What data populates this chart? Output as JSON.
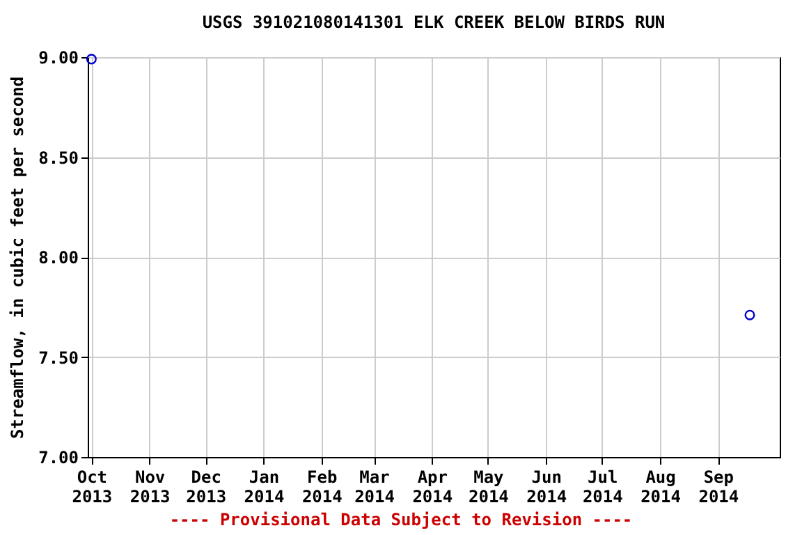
{
  "chart_data": {
    "type": "scatter",
    "title": "USGS 391021080141301 ELK CREEK BELOW BIRDS RUN",
    "ylabel": "Streamflow, in cubic feet per second",
    "x": [
      "2013-10-01",
      "2014-09-18"
    ],
    "series": [
      {
        "color": "#0000cc",
        "values": [
          8.99,
          7.71
        ]
      }
    ],
    "xlim": [
      "2013-09-29",
      "2014-10-04"
    ],
    "xticks": [
      {
        "value": "2013-10-01",
        "label": "Oct 2013"
      },
      {
        "value": "2013-11-01",
        "label": "Nov 2013"
      },
      {
        "value": "2013-12-01",
        "label": "Dec 2013"
      },
      {
        "value": "2014-01-01",
        "label": "Jan 2014"
      },
      {
        "value": "2014-02-01",
        "label": "Feb 2014"
      },
      {
        "value": "2014-03-01",
        "label": "Mar 2014"
      },
      {
        "value": "2014-04-01",
        "label": "Apr 2014"
      },
      {
        "value": "2014-05-01",
        "label": "May 2014"
      },
      {
        "value": "2014-06-01",
        "label": "Jun 2014"
      },
      {
        "value": "2014-07-01",
        "label": "Jul 2014"
      },
      {
        "value": "2014-08-01",
        "label": "Aug 2014"
      },
      {
        "value": "2014-09-01",
        "label": "Sep 2014"
      }
    ],
    "ylim": [
      7,
      9
    ],
    "yticks": [
      {
        "value": 7,
        "label": "7.00"
      },
      {
        "value": 7.5,
        "label": "7.50"
      },
      {
        "value": 8,
        "label": "8.00"
      },
      {
        "value": 8.5,
        "label": "8.50"
      },
      {
        "value": 9,
        "label": "9.00"
      }
    ],
    "grid": true,
    "marker": "circle",
    "annotations": [
      "---- Provisional Data Subject to Revision ----"
    ]
  }
}
